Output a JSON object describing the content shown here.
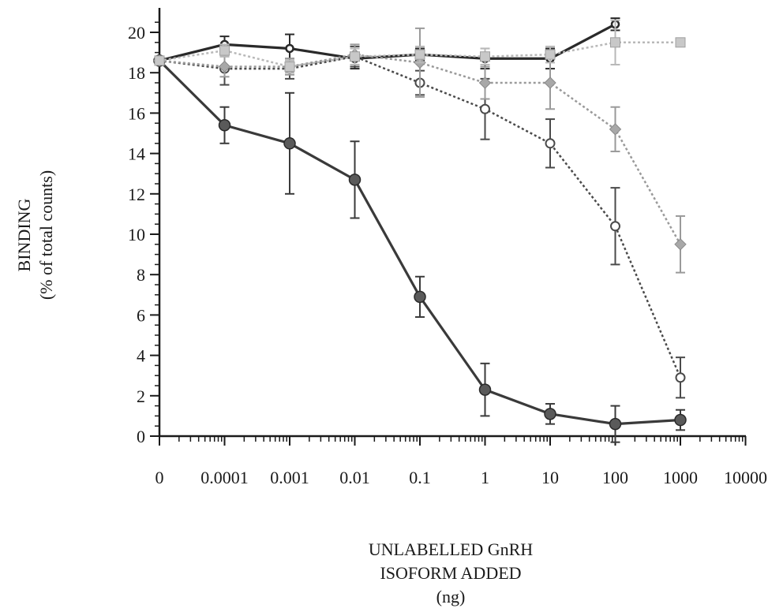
{
  "chart_data": {
    "type": "line",
    "ylabel_lines": [
      "BINDING",
      "(% of total counts)"
    ],
    "xlabel_lines": [
      "UNLABELLED GnRH",
      "ISOFORM ADDED",
      "(ng)"
    ],
    "x_tick_labels": [
      "0",
      "0.0001",
      "0.001",
      "0.01",
      "0.1",
      "1",
      "10",
      "100",
      "1000",
      "10000"
    ],
    "y_ticks": [
      0,
      2,
      4,
      6,
      8,
      10,
      12,
      14,
      16,
      18,
      20
    ],
    "ylim": [
      0,
      20.5
    ],
    "series": [
      {
        "color": "#3a3a3a",
        "marker": "filled-circle",
        "dash": "solid",
        "x": [
          "0",
          "0.0001",
          "0.001",
          "0.01",
          "0.1",
          "1",
          "10",
          "100",
          "1000"
        ],
        "y": [
          18.6,
          15.4,
          14.5,
          12.7,
          6.9,
          2.3,
          1.1,
          0.6,
          0.8
        ],
        "err": [
          0,
          0.9,
          2.5,
          1.9,
          1.0,
          1.3,
          0.5,
          0.9,
          0.5
        ]
      },
      {
        "color": "#2a2a2a",
        "marker": "small-circle",
        "dash": "solid",
        "x": [
          "0",
          "0.0001",
          "0.001",
          "0.01",
          "0.1",
          "1",
          "10",
          "100"
        ],
        "y": [
          18.6,
          19.4,
          19.2,
          18.7,
          18.9,
          18.7,
          18.7,
          20.4
        ],
        "err": [
          0,
          0.4,
          0.7,
          0.5,
          0.3,
          0.5,
          0.5,
          0.3
        ]
      },
      {
        "color": "#4a4a4a",
        "marker": "open-circle",
        "dash": "dotted",
        "x": [
          "0",
          "0.0001",
          "0.001",
          "0.01",
          "0.1",
          "1",
          "10",
          "100",
          "1000"
        ],
        "y": [
          18.6,
          18.2,
          18.2,
          18.8,
          17.5,
          16.2,
          14.5,
          10.4,
          2.9
        ],
        "err": [
          0,
          0.8,
          0.5,
          0.5,
          0.6,
          1.5,
          1.2,
          1.9,
          1.0
        ]
      },
      {
        "color": "#9a9a9a",
        "marker": "diamond",
        "dash": "dotted",
        "x": [
          "0",
          "0.0001",
          "0.001",
          "0.01",
          "0.1",
          "1",
          "10",
          "100",
          "1000"
        ],
        "y": [
          18.6,
          18.3,
          18.3,
          18.9,
          18.5,
          17.5,
          17.5,
          15.2,
          9.5
        ],
        "err": [
          0,
          0.5,
          0.4,
          0.5,
          1.7,
          0.8,
          1.3,
          1.1,
          1.4
        ]
      },
      {
        "color": "#b8b8b8",
        "marker": "square",
        "dash": "dotted",
        "x": [
          "0",
          "0.0001",
          "0.001",
          "0.01",
          "0.1",
          "1",
          "10",
          "100",
          "1000"
        ],
        "y": [
          18.6,
          19.1,
          18.3,
          18.8,
          18.9,
          18.8,
          18.9,
          19.5,
          19.5
        ],
        "err": [
          0,
          0.3,
          0.3,
          0.4,
          0.4,
          0.4,
          0.4,
          1.1,
          0
        ]
      }
    ]
  }
}
